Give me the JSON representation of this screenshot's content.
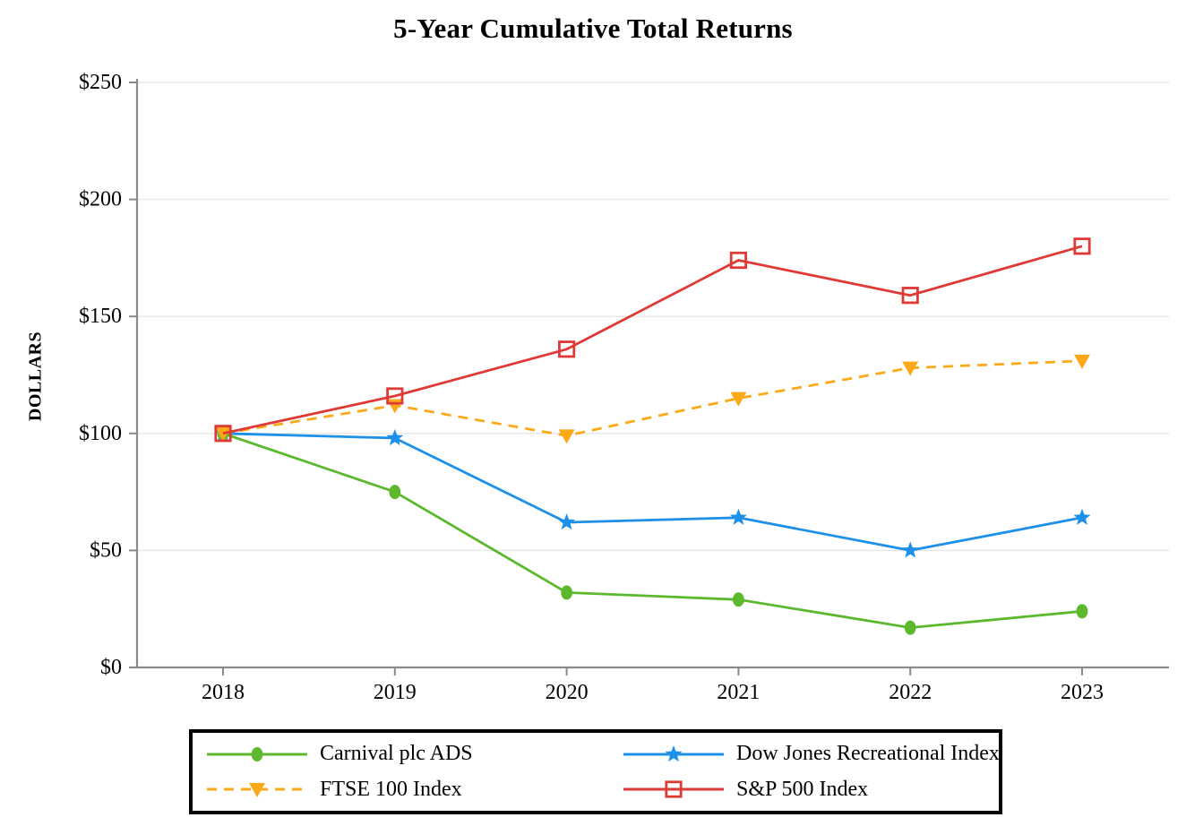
{
  "chart_data": {
    "type": "line",
    "title": "5-Year Cumulative Total Returns",
    "ylabel": "DOLLARS",
    "xlabel": "",
    "categories": [
      "2018",
      "2019",
      "2020",
      "2021",
      "2022",
      "2023"
    ],
    "ylim": [
      0,
      250
    ],
    "y_tick_step": 50,
    "y_ticks": [
      "$0",
      "$50",
      "$100",
      "$150",
      "$200",
      "$250"
    ],
    "grid": "horizontal",
    "legend_position": "bottom-boxed",
    "series": [
      {
        "name": "Carnival plc ADS",
        "color": "#5cb82d",
        "marker": "circle",
        "line": "solid",
        "values": [
          100,
          75,
          32,
          29,
          17,
          24
        ]
      },
      {
        "name": "Dow Jones Recreational Index",
        "color": "#1e90e8",
        "marker": "star",
        "line": "solid",
        "values": [
          100,
          98,
          62,
          64,
          50,
          64
        ]
      },
      {
        "name": "FTSE 100 Index",
        "color": "#fba919",
        "marker": "triangle-down",
        "line": "dashed",
        "values": [
          100,
          112,
          99,
          115,
          128,
          131
        ]
      },
      {
        "name": "S&P 500 Index",
        "color": "#df3a35",
        "marker": "square-open",
        "line": "solid",
        "values": [
          100,
          116,
          136,
          174,
          159,
          180
        ]
      }
    ],
    "colors": {
      "axis": "#8a8a8a",
      "gridline": "#e7e7e7",
      "text": "#000000"
    }
  }
}
